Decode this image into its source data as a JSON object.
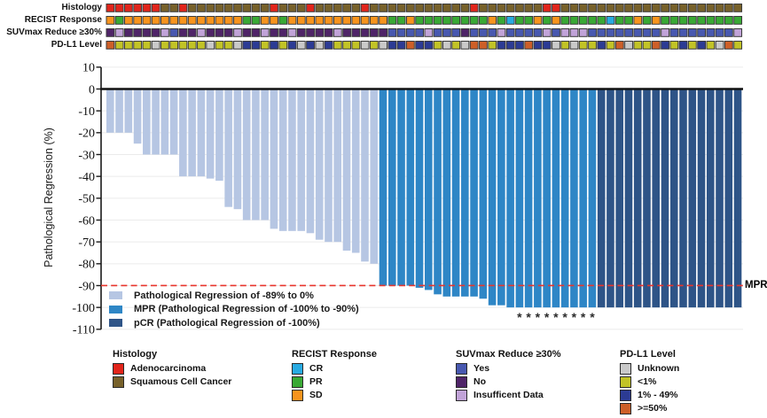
{
  "annotation_tracks": {
    "rows": [
      {
        "label": "Histology",
        "codes": "AAAAAASSASSSSSSSSSASSSASSSSSASSSSSSSSSSSASSSSSSSAASSSSSSSSSSSSSSSSSSSS",
        "palette": {
          "A": "#e1251b",
          "S": "#77612a"
        }
      },
      {
        "label": "RECIST Response",
        "codes": "OGOOOOOOOOOOOOOGGOOGOOOOOOOOOOOGGOGGGGGGGGOGCGGOGOGGGGGCGGOGOGGGGGGGGG",
        "palette": {
          "O": "#f7941e",
          "G": "#39a935",
          "C": "#29abe2"
        }
      },
      {
        "label": "SUVmax Reduce ≥30%",
        "codes": "NINNNNIYNNINNNINNINNINNNNINNNNNYYYYIYYYNYYYIYYYYIYIIIYYYYYYYYIYYYYYYYI",
        "palette": {
          "Y": "#4858b0",
          "N": "#4f2468",
          "I": "#c1a3d8"
        }
      },
      {
        "label": "PD-L1 Level",
        "codes": "HLLLLULLLLLULLUMMLMLMUMUMLLLULUMMHMMLULUHHLMMMHMMULULLMLHULLHMLMLMLUHL",
        "palette": {
          "U": "#c9c9c9",
          "L": "#c2c326",
          "M": "#2c3b94",
          "H": "#cd5f28"
        }
      }
    ]
  },
  "chart_data": {
    "type": "bar",
    "title": "",
    "xlabel": "",
    "ylabel": "Pathological Regression (%)",
    "ylim": [
      -110,
      10
    ],
    "yticks": [
      10,
      0,
      -10,
      -20,
      -30,
      -40,
      -50,
      -60,
      -70,
      -80,
      -90,
      -100,
      -110
    ],
    "grid": true,
    "values": [
      -20,
      -20,
      -20,
      -25,
      -30,
      -30,
      -30,
      -30,
      -40,
      -40,
      -40,
      -41,
      -42,
      -54,
      -55,
      -60,
      -60,
      -60,
      -64,
      -65,
      -65,
      -65,
      -66,
      -69,
      -70,
      -70,
      -74,
      -75,
      -79,
      -80,
      -90,
      -90,
      -90,
      -90,
      -91,
      -92,
      -94,
      -95,
      -95,
      -95,
      -95,
      -96,
      -99,
      -99,
      -100,
      -100,
      -100,
      -100,
      -100,
      -100,
      -100,
      -100,
      -100,
      -100,
      -100,
      -100,
      -100,
      -100,
      -100,
      -100,
      -100,
      -100,
      -100,
      -100,
      -100,
      -100,
      -100,
      -100,
      -100,
      -100
    ],
    "bar_groups": "RRRRRRRRRRRRRRRRRRRRRRRRRRRRRRMMMMMMMMMMMMMMMMMMMMMMMMPPPPPPPPPPPPPPPP",
    "group_colors": {
      "R": "#b6c6e3",
      "M": "#2e86c6",
      "P": "#2e5487"
    },
    "asterisk_bars": [
      46,
      47,
      48,
      49,
      50,
      51,
      52,
      53,
      54
    ],
    "asterisk_symbol": "*",
    "reference_line": {
      "value": -90,
      "label": "MPR",
      "color": "#e8352c",
      "style": "dashed"
    },
    "legend_position": "bottom-left-inside",
    "legend": [
      {
        "code": "R",
        "label": "Pathological Regression of -89% to 0%"
      },
      {
        "code": "M",
        "label": "MPR (Pathological Regression of -100% to -90%)"
      },
      {
        "code": "P",
        "label": "pCR (Pathological Regression of -100%)"
      }
    ]
  },
  "bottom_legends": [
    {
      "title": "Histology",
      "items": [
        {
          "label": "Adenocarcinoma",
          "color": "#e1251b"
        },
        {
          "label": "Squamous Cell Cancer",
          "color": "#77612a"
        }
      ]
    },
    {
      "title": "RECIST Response",
      "items": [
        {
          "label": "CR",
          "color": "#29abe2"
        },
        {
          "label": "PR",
          "color": "#39a935"
        },
        {
          "label": "SD",
          "color": "#f7941e"
        }
      ]
    },
    {
      "title": "SUVmax Reduce ≥30%",
      "items": [
        {
          "label": "Yes",
          "color": "#4858b0"
        },
        {
          "label": "No",
          "color": "#4f2468"
        },
        {
          "label": "Insufficent Data",
          "color": "#c1a3d8"
        }
      ]
    },
    {
      "title": "PD-L1 Level",
      "items": [
        {
          "label": "Unknown",
          "color": "#c9c9c9"
        },
        {
          "label": "<1%",
          "color": "#c2c326"
        },
        {
          "label": "1% - 49%",
          "color": "#2c3b94"
        },
        {
          "label": ">=50%",
          "color": "#cd5f28"
        }
      ]
    }
  ]
}
